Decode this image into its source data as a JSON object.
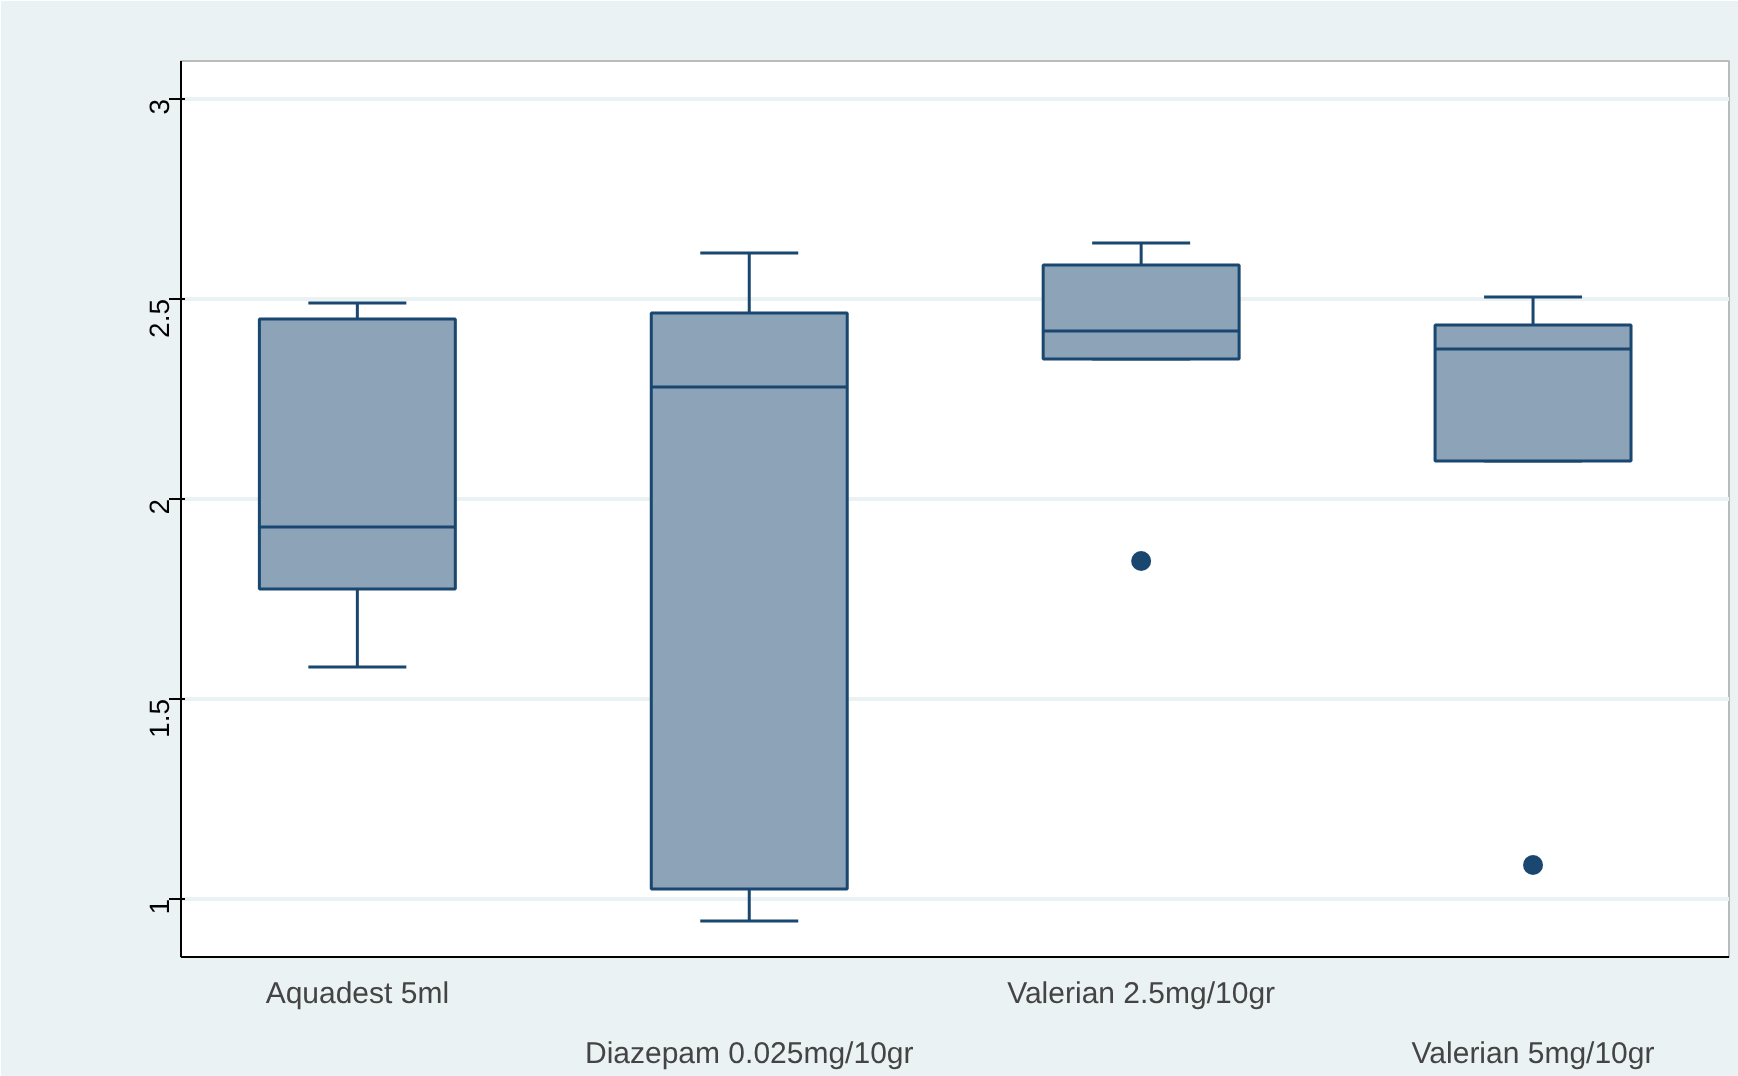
{
  "chart_data": {
    "type": "box",
    "categories": [
      "Aquadest 5ml",
      "Diazepam 0.025mg/10gr",
      "Valerian 2.5mg/10gr",
      "Valerian 5mg/10gr"
    ],
    "boxes": [
      {
        "low": 1.58,
        "q1": 1.775,
        "median": 1.93,
        "q3": 2.45,
        "high": 2.49
      },
      {
        "low": 0.945,
        "q1": 1.025,
        "median": 2.28,
        "q3": 2.465,
        "high": 2.615
      },
      {
        "low": 2.35,
        "q1": 2.35,
        "median": 2.42,
        "q3": 2.585,
        "high": 2.64,
        "outliers": [
          1.845
        ]
      },
      {
        "low": 2.095,
        "q1": 2.095,
        "median": 2.375,
        "q3": 2.435,
        "high": 2.505,
        "outliers": [
          1.085
        ]
      }
    ],
    "color": "#8ca3b8",
    "ylim": [
      0.855,
      3.095
    ],
    "yticks": [
      {
        "value": 1,
        "label": "1"
      },
      {
        "value": 1.5,
        "label": "1.5"
      },
      {
        "value": 2,
        "label": "2"
      },
      {
        "value": 2.5,
        "label": "2.5"
      },
      {
        "value": 3,
        "label": "3"
      }
    ],
    "grid": "y"
  }
}
